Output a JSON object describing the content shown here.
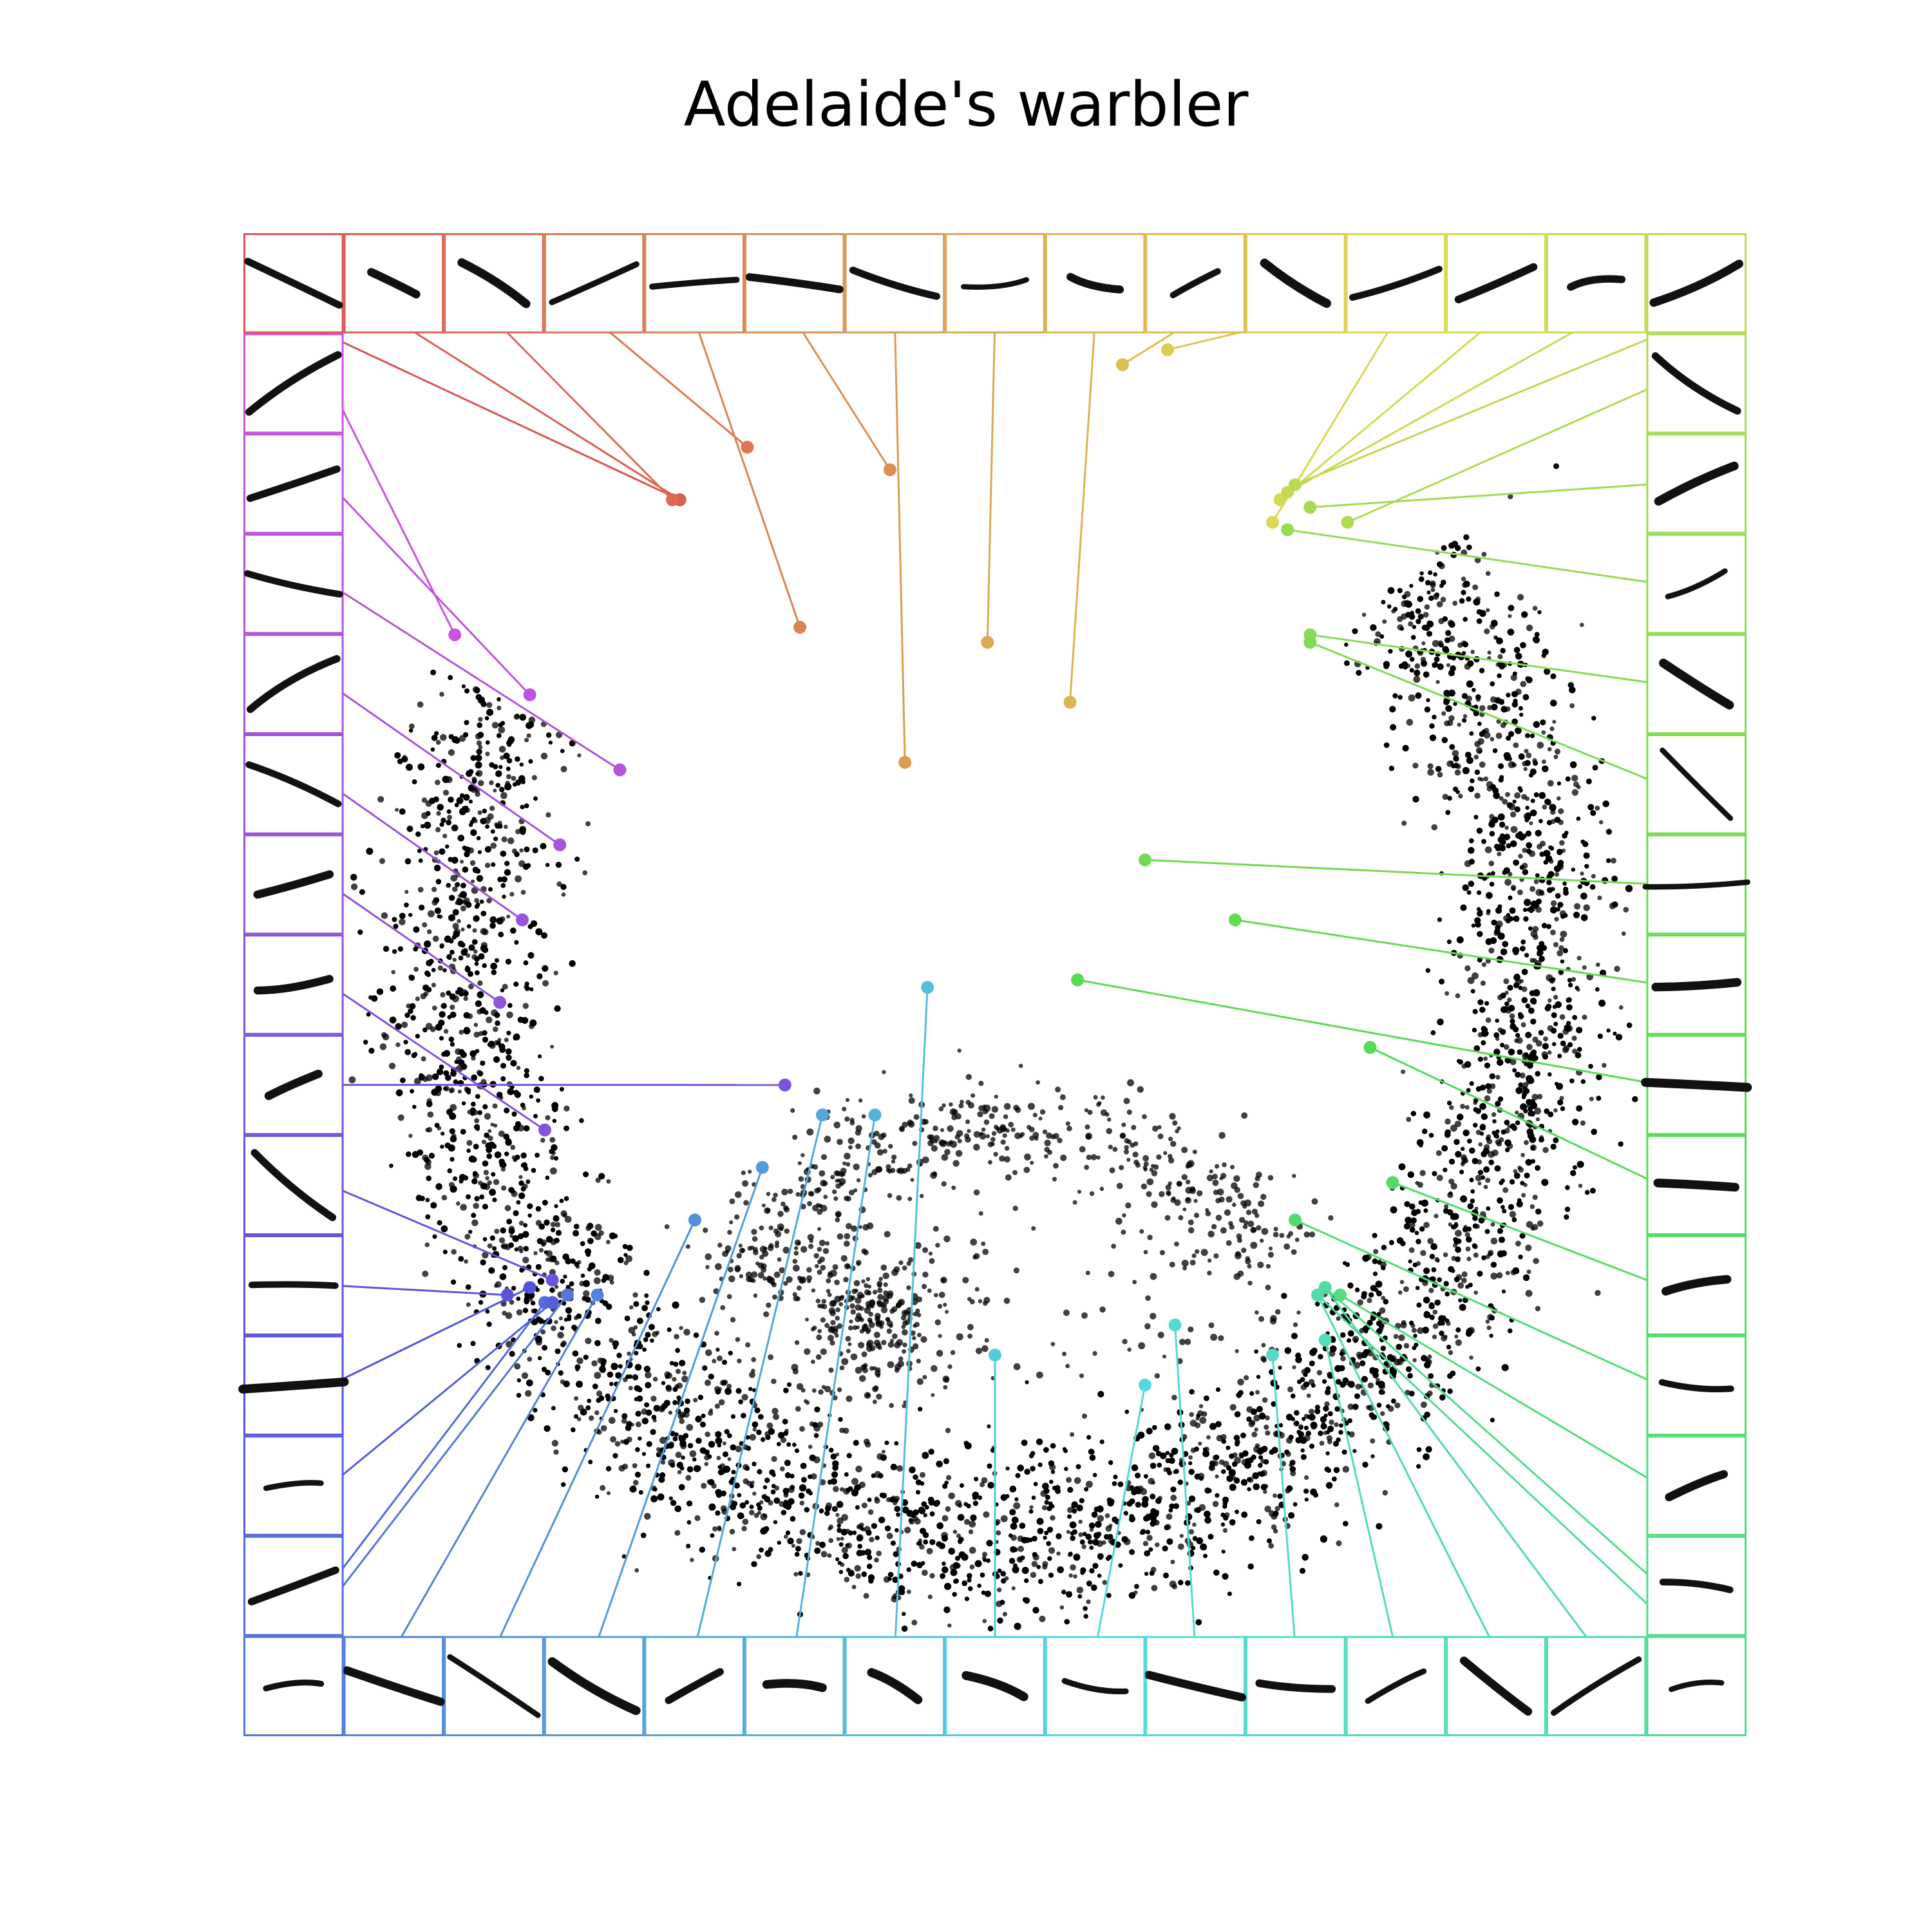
{
  "title": "Adelaide's warbler",
  "chart_data": {
    "type": "scatter",
    "title": "Adelaide's warbler",
    "xlabel": "",
    "ylabel": "",
    "axes": "hidden",
    "grid": false,
    "legend": "none",
    "point_color": "#000000",
    "point_count_estimate": 12000,
    "clusters": [
      {
        "kind": "ring",
        "cx": 0.0,
        "cy": 0.0,
        "rx": 0.72,
        "ry": 0.78,
        "thickness": 0.17,
        "gap_from_deg": 205,
        "gap_to_deg": 320,
        "weight": 0.88
      },
      {
        "kind": "arc",
        "cx": 0.02,
        "cy": 0.45,
        "rx": 0.34,
        "ry": 0.22,
        "weight": 0.06
      },
      {
        "kind": "blob",
        "cx": -0.16,
        "cy": 0.49,
        "r": 0.05,
        "weight": 0.02
      }
    ],
    "spectrogram_border": {
      "rows": 15,
      "cols": 15,
      "cell_count": 56,
      "colormap": "hsv (red -> yellow -> green -> cyan -> blue -> violet)"
    },
    "annotations": [
      {
        "cell": 0,
        "x": -0.42,
        "y": -0.6
      },
      {
        "cell": 1,
        "x": -0.42,
        "y": -0.6
      },
      {
        "cell": 2,
        "x": -0.43,
        "y": -0.6
      },
      {
        "cell": 3,
        "x": -0.33,
        "y": -0.67
      },
      {
        "cell": 4,
        "x": -0.26,
        "y": -0.43
      },
      {
        "cell": 5,
        "x": -0.14,
        "y": -0.64
      },
      {
        "cell": 6,
        "x": -0.12,
        "y": -0.25
      },
      {
        "cell": 7,
        "x": -0.01,
        "y": -0.41
      },
      {
        "cell": 8,
        "x": 0.1,
        "y": -0.33
      },
      {
        "cell": 9,
        "x": 0.17,
        "y": -0.78
      },
      {
        "cell": 10,
        "x": 0.23,
        "y": -0.8
      },
      {
        "cell": 11,
        "x": 0.37,
        "y": -0.57
      },
      {
        "cell": 12,
        "x": 0.38,
        "y": -0.6
      },
      {
        "cell": 13,
        "x": 0.39,
        "y": -0.61
      },
      {
        "cell": 14,
        "x": 0.4,
        "y": -0.62
      },
      {
        "cell": 15,
        "x": 0.47,
        "y": -0.57
      },
      {
        "cell": 16,
        "x": 0.42,
        "y": -0.59
      },
      {
        "cell": 17,
        "x": 0.39,
        "y": -0.56
      },
      {
        "cell": 18,
        "x": 0.42,
        "y": -0.42
      },
      {
        "cell": 19,
        "x": 0.42,
        "y": -0.41
      },
      {
        "cell": 20,
        "x": 0.2,
        "y": -0.12
      },
      {
        "cell": 21,
        "x": 0.32,
        "y": -0.04
      },
      {
        "cell": 22,
        "x": 0.11,
        "y": 0.04
      },
      {
        "cell": 23,
        "x": 0.5,
        "y": 0.13
      },
      {
        "cell": 24,
        "x": 0.53,
        "y": 0.31
      },
      {
        "cell": 25,
        "x": 0.4,
        "y": 0.36
      },
      {
        "cell": 26,
        "x": 0.46,
        "y": 0.46
      },
      {
        "cell": 27,
        "x": 0.44,
        "y": 0.45
      },
      {
        "cell": 28,
        "x": 0.43,
        "y": 0.46
      },
      {
        "cell": 29,
        "x": 0.44,
        "y": 0.45
      },
      {
        "cell": 30,
        "x": 0.43,
        "y": 0.46
      },
      {
        "cell": 31,
        "x": 0.44,
        "y": 0.52
      },
      {
        "cell": 32,
        "x": 0.37,
        "y": 0.54
      },
      {
        "cell": 33,
        "x": 0.24,
        "y": 0.5
      },
      {
        "cell": 34,
        "x": 0.2,
        "y": 0.58
      },
      {
        "cell": 35,
        "x": 0.0,
        "y": 0.54
      },
      {
        "cell": 36,
        "x": -0.09,
        "y": 0.05
      },
      {
        "cell": 37,
        "x": -0.16,
        "y": 0.22
      },
      {
        "cell": 38,
        "x": -0.23,
        "y": 0.22
      },
      {
        "cell": 39,
        "x": -0.31,
        "y": 0.29
      },
      {
        "cell": 40,
        "x": -0.4,
        "y": 0.36
      },
      {
        "cell": 41,
        "x": -0.53,
        "y": 0.46
      },
      {
        "cell": 42,
        "x": -0.57,
        "y": 0.46
      },
      {
        "cell": 43,
        "x": -0.6,
        "y": 0.47
      },
      {
        "cell": 44,
        "x": -0.59,
        "y": 0.47
      },
      {
        "cell": 45,
        "x": -0.62,
        "y": 0.45
      },
      {
        "cell": 46,
        "x": -0.65,
        "y": 0.46
      },
      {
        "cell": 47,
        "x": -0.59,
        "y": 0.44
      },
      {
        "cell": 48,
        "x": -0.28,
        "y": 0.18
      },
      {
        "cell": 49,
        "x": -0.6,
        "y": 0.24
      },
      {
        "cell": 50,
        "x": -0.66,
        "y": 0.07
      },
      {
        "cell": 51,
        "x": -0.63,
        "y": -0.04
      },
      {
        "cell": 52,
        "x": -0.58,
        "y": -0.14
      },
      {
        "cell": 53,
        "x": -0.5,
        "y": -0.24
      },
      {
        "cell": 54,
        "x": -0.62,
        "y": -0.34
      },
      {
        "cell": 55,
        "x": -0.72,
        "y": -0.42
      }
    ]
  }
}
